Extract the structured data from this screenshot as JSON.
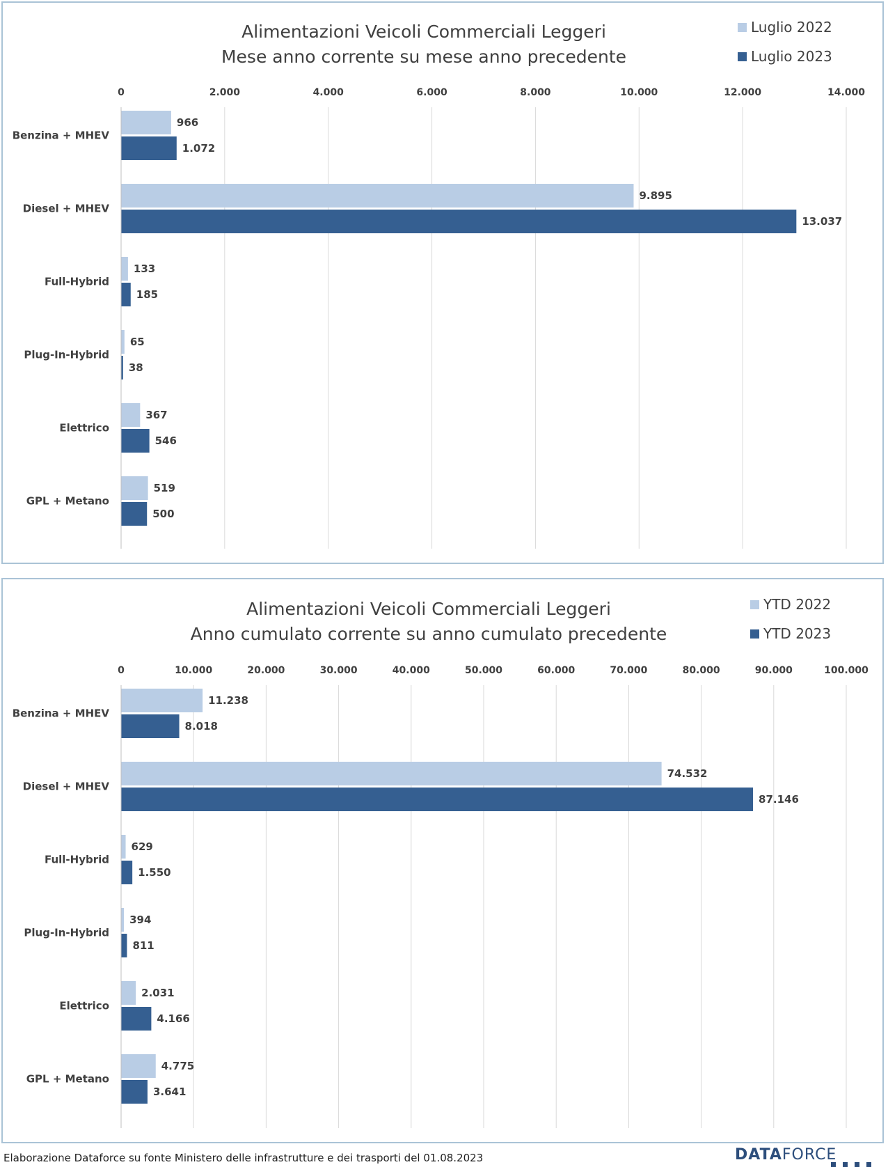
{
  "chart_data": [
    {
      "type": "bar",
      "orientation": "horizontal",
      "title": "Alimentazioni Veicoli Commerciali Leggeri",
      "subtitle": "Mese anno corrente su mese anno precedente",
      "categories": [
        "Benzina + MHEV",
        "Diesel + MHEV",
        "Full-Hybrid",
        "Plug-In-Hybrid",
        "Elettrico",
        "GPL + Metano"
      ],
      "series": [
        {
          "name": "Luglio 2022",
          "color": "#b9cde5",
          "values": [
            966,
            9895,
            133,
            65,
            367,
            519
          ],
          "labels": [
            "966",
            "9.895",
            "133",
            "65",
            "367",
            "519"
          ]
        },
        {
          "name": "Luglio 2023",
          "color": "#355f91",
          "values": [
            1072,
            13037,
            185,
            38,
            546,
            500
          ],
          "labels": [
            "1.072",
            "13.037",
            "185",
            "38",
            "546",
            "500"
          ]
        }
      ],
      "xlim": [
        0,
        14000
      ],
      "ticks": [
        0,
        2000,
        4000,
        6000,
        8000,
        10000,
        12000,
        14000
      ],
      "tick_labels": [
        "0",
        "2.000",
        "4.000",
        "6.000",
        "8.000",
        "10.000",
        "12.000",
        "14.000"
      ],
      "axis_position": "top",
      "grid": true,
      "legend_position": "top-right"
    },
    {
      "type": "bar",
      "orientation": "horizontal",
      "title": "Alimentazioni Veicoli Commerciali Leggeri",
      "subtitle": "Anno cumulato corrente su anno cumulato precedente",
      "categories": [
        "Benzina + MHEV",
        "Diesel + MHEV",
        "Full-Hybrid",
        "Plug-In-Hybrid",
        "Elettrico",
        "GPL + Metano"
      ],
      "series": [
        {
          "name": "YTD 2022",
          "color": "#b9cde5",
          "values": [
            11238,
            74532,
            629,
            394,
            2031,
            4775
          ],
          "labels": [
            "11.238",
            "74.532",
            "629",
            "394",
            "2.031",
            "4.775"
          ]
        },
        {
          "name": "YTD 2023",
          "color": "#355f91",
          "values": [
            8018,
            87146,
            1550,
            811,
            4166,
            3641
          ],
          "labels": [
            "8.018",
            "87.146",
            "1.550",
            "811",
            "4.166",
            "3.641"
          ]
        }
      ],
      "xlim": [
        0,
        100000
      ],
      "ticks": [
        0,
        10000,
        20000,
        30000,
        40000,
        50000,
        60000,
        70000,
        80000,
        90000,
        100000
      ],
      "tick_labels": [
        "0",
        "10.000",
        "20.000",
        "30.000",
        "40.000",
        "50.000",
        "60.000",
        "70.000",
        "80.000",
        "90.000",
        "100.000"
      ],
      "axis_position": "top",
      "grid": true,
      "legend_position": "top-right"
    }
  ],
  "footer": {
    "note": "Elaborazione Dataforce su fonte Ministero delle infrastrutture e dei trasporti del 01.08.2023",
    "logo_part1": "DATA",
    "logo_part2": "FORCE"
  }
}
